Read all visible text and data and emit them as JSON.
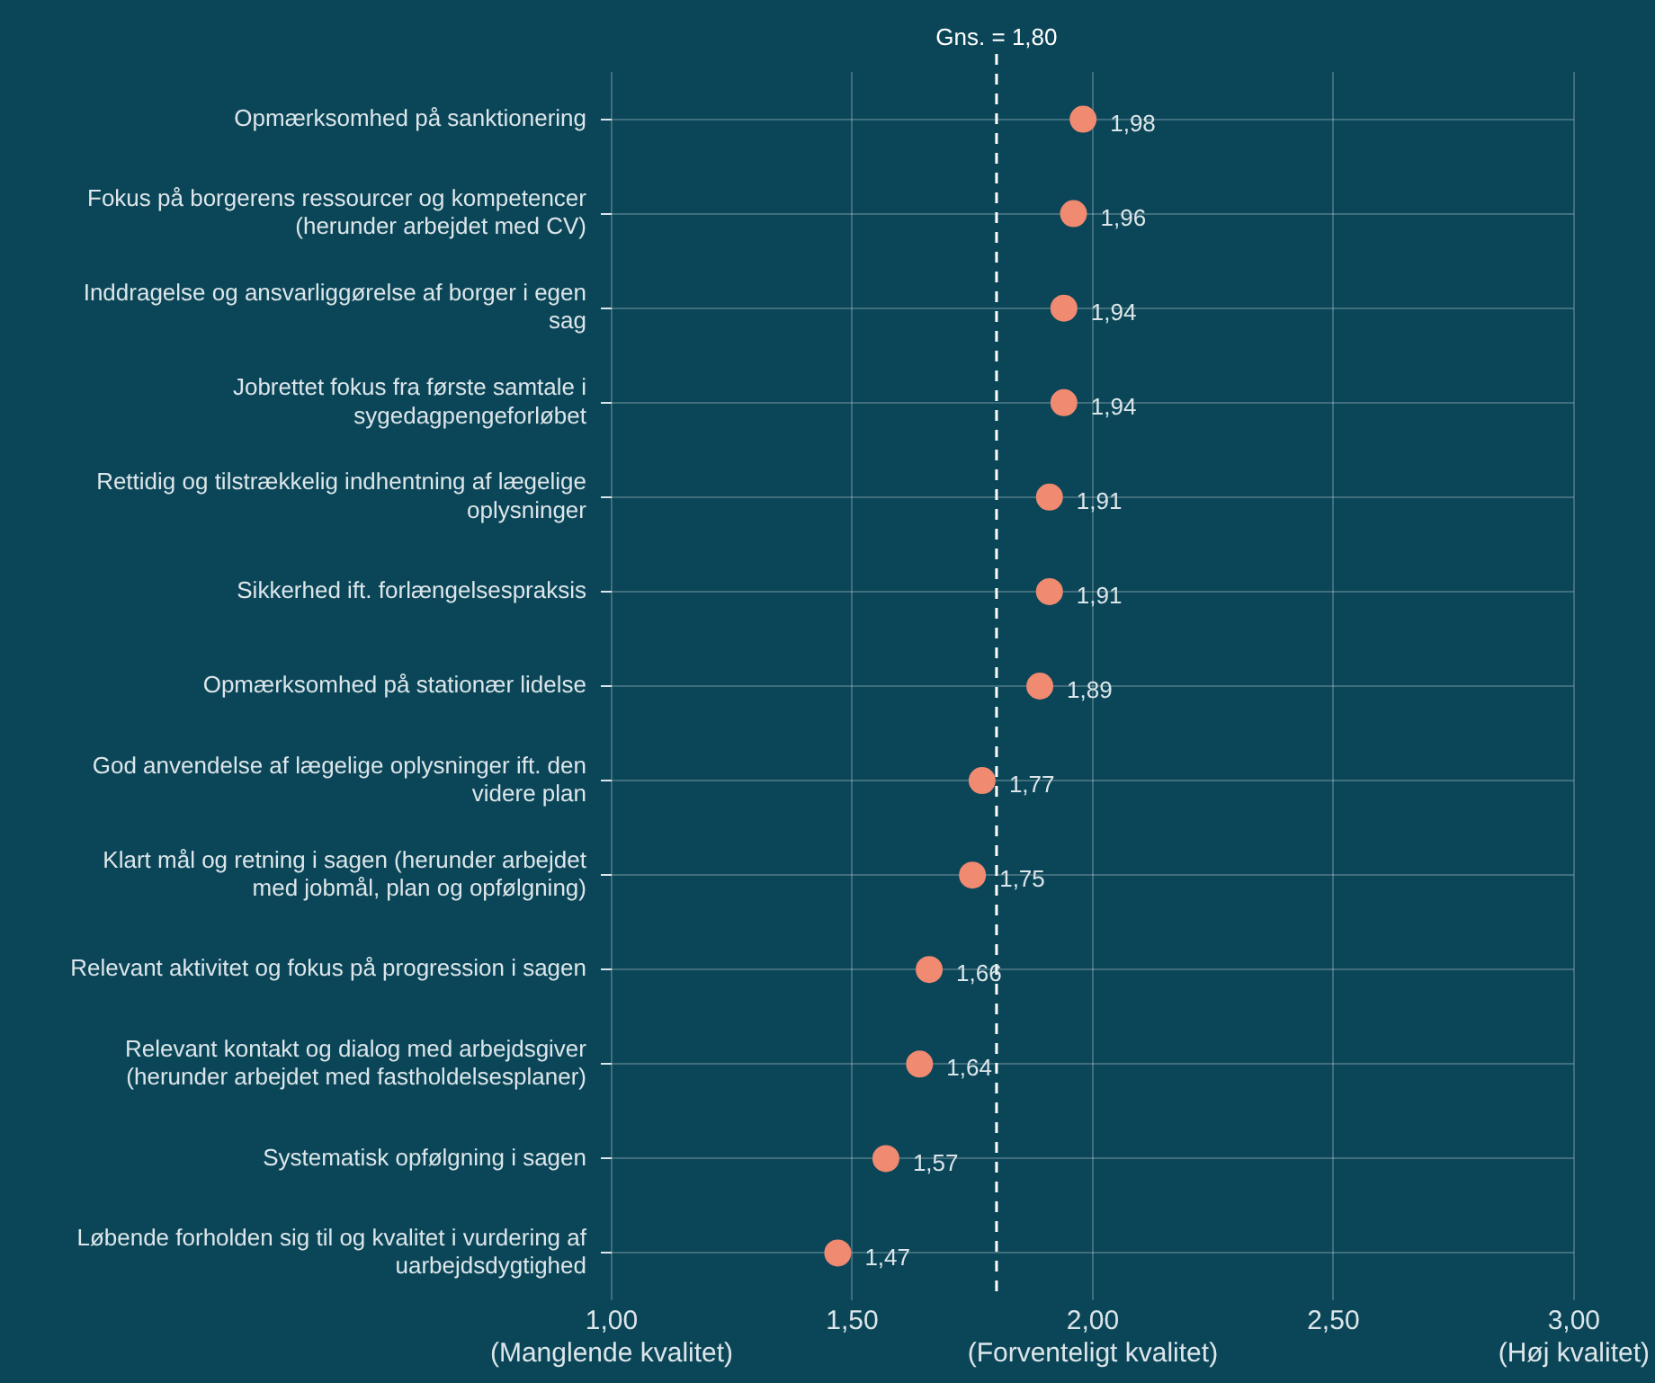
{
  "chart_data": {
    "type": "scatter",
    "orientation": "horizontal",
    "marker": "circle",
    "grid": true,
    "legend": false,
    "categories": [
      "Opmærksomhed på sanktionering",
      "Fokus på borgerens ressourcer og kompetencer (herunder arbejdet med CV)",
      "Inddragelse og ansvarliggørelse af borger i egen sag",
      "Jobrettet fokus fra første samtale i sygedagpengeforløbet",
      "Rettidig og tilstrækkelig indhentning af lægelige oplysninger",
      "Sikkerhed ift. forlængelsespraksis",
      "Opmærksomhed på stationær lidelse",
      "God anvendelse af lægelige oplysninger ift. den videre plan",
      "Klart mål og retning i sagen (herunder arbejdet med jobmål, plan og opfølgning)",
      "Relevant aktivitet og fokus på progression i sagen",
      "Relevant kontakt og dialog med arbejdsgiver (herunder arbejdet med fastholdelsesplaner)",
      "Systematisk opfølgning i sagen",
      "Løbende forholden sig til og kvalitet i vurdering af uarbejdsdygtighed"
    ],
    "values": [
      1.98,
      1.96,
      1.94,
      1.94,
      1.91,
      1.91,
      1.89,
      1.77,
      1.75,
      1.66,
      1.64,
      1.57,
      1.47
    ],
    "value_labels": [
      "1,98",
      "1,96",
      "1,94",
      "1,94",
      "1,91",
      "1,91",
      "1,89",
      "1,77",
      "1,75",
      "1,66",
      "1,64",
      "1,57",
      "1,47"
    ],
    "color": "#f08a70",
    "xlim": [
      1,
      3
    ],
    "xticks": [
      {
        "value": 1,
        "label": "1,00\n(Manglende kvalitet)"
      },
      {
        "value": 1.5,
        "label": "1,50"
      },
      {
        "value": 2,
        "label": "2,00\n(Forventeligt kvalitet)"
      },
      {
        "value": 2.5,
        "label": "2,50"
      },
      {
        "value": 3,
        "label": "3,00\n(Høj kvalitet)"
      }
    ],
    "ref_lines": [
      {
        "axis": "x",
        "value": 1.8,
        "label": "Gns. = 1,80",
        "color": "#ffffff",
        "line_style": "dashed"
      }
    ]
  }
}
